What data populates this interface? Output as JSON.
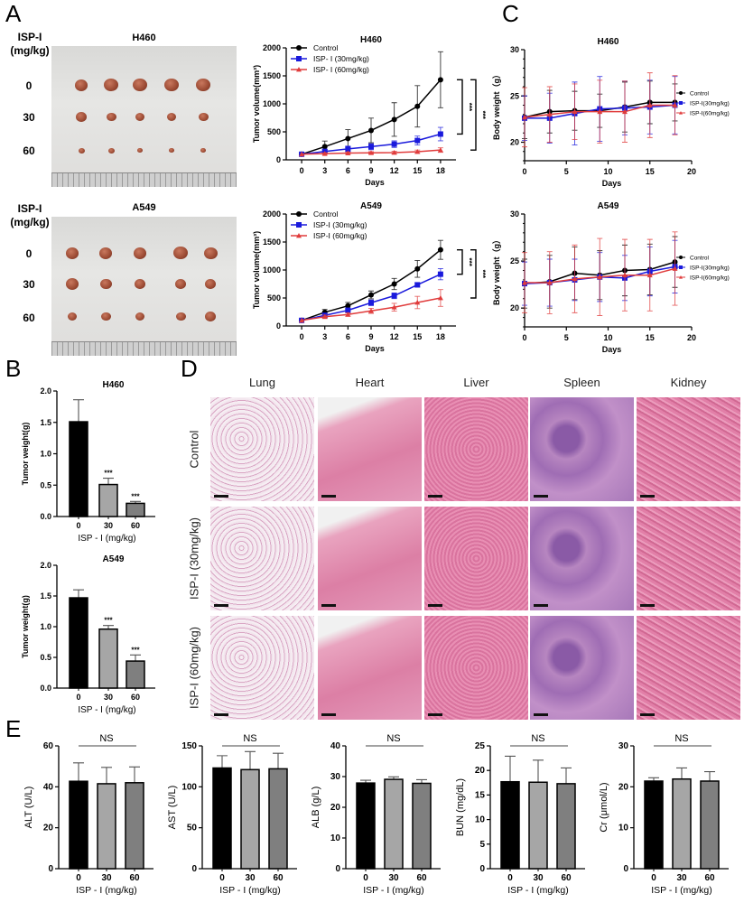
{
  "panels": {
    "A": "A",
    "B": "B",
    "C": "C",
    "D": "D",
    "E": "E"
  },
  "photos": [
    {
      "title": "H460",
      "row_header_1": "ISP-I",
      "row_header_2": "(mg/kg)",
      "rows": [
        "0",
        "30",
        "60"
      ]
    },
    {
      "title": "A549",
      "row_header_1": "ISP-I",
      "row_header_2": "(mg/kg)",
      "rows": [
        "0",
        "30",
        "60"
      ]
    }
  ],
  "histology": {
    "columns": [
      "Lung",
      "Heart",
      "Liver",
      "Spleen",
      "Kidney"
    ],
    "rows": [
      "Control",
      "ISP-I (30mg/kg)",
      "ISP-I (60mg/kg)"
    ]
  },
  "chart_data": [
    {
      "type": "line",
      "panel": "A",
      "title": "H460",
      "xlabel": "Days",
      "ylabel": "Tumor volume(mm³)",
      "x": [
        0,
        3,
        6,
        9,
        12,
        15,
        18
      ],
      "xticks": [
        0,
        3,
        6,
        9,
        12,
        15,
        18
      ],
      "ylim": [
        0,
        2000
      ],
      "yticks": [
        "0",
        "500",
        "1000",
        "1500",
        "2000"
      ],
      "legend": "top-left",
      "series": [
        {
          "name": "Control",
          "color": "#000000",
          "marker": "circle",
          "values": [
            100,
            235,
            380,
            525,
            720,
            955,
            1430
          ],
          "errors": [
            0,
            100,
            160,
            220,
            300,
            370,
            500
          ]
        },
        {
          "name": "ISP- I (30mg/kg)",
          "color": "#1a1adc",
          "marker": "square",
          "values": [
            100,
            150,
            195,
            235,
            280,
            345,
            460
          ],
          "errors": [
            0,
            40,
            50,
            55,
            60,
            80,
            120
          ]
        },
        {
          "name": "ISP- I (60mg/kg)",
          "color": "#e03c3c",
          "marker": "triangle",
          "values": [
            100,
            110,
            120,
            125,
            130,
            145,
            175
          ],
          "errors": [
            0,
            15,
            20,
            20,
            25,
            30,
            40
          ]
        }
      ],
      "significance": [
        {
          "from": 0,
          "to": 1,
          "label": "***"
        },
        {
          "from": 0,
          "to": 2,
          "label": "***"
        }
      ]
    },
    {
      "type": "line",
      "panel": "A",
      "title": "A549",
      "xlabel": "Days",
      "ylabel": "Tumor volume(mm³)",
      "x": [
        0,
        3,
        6,
        9,
        12,
        15,
        18
      ],
      "xticks": [
        0,
        3,
        6,
        9,
        12,
        15,
        18
      ],
      "ylim": [
        0,
        2000
      ],
      "yticks": [
        "0",
        "500",
        "1000",
        "1500",
        "2000"
      ],
      "legend": "top-left",
      "series": [
        {
          "name": "Control",
          "color": "#000000",
          "marker": "circle",
          "values": [
            100,
            245,
            360,
            555,
            750,
            1020,
            1360
          ],
          "errors": [
            0,
            50,
            60,
            70,
            100,
            150,
            170
          ]
        },
        {
          "name": "ISP-I (30mg/kg)",
          "color": "#1a1adc",
          "marker": "square",
          "values": [
            100,
            190,
            280,
            415,
            540,
            735,
            925
          ],
          "errors": [
            0,
            30,
            40,
            50,
            50,
            40,
            100
          ]
        },
        {
          "name": "ISP-I (60mg/kg)",
          "color": "#e03c3c",
          "marker": "triangle",
          "values": [
            100,
            165,
            205,
            270,
            335,
            420,
            500
          ],
          "errors": [
            0,
            30,
            30,
            45,
            70,
            110,
            150
          ]
        }
      ],
      "significance": [
        {
          "from": 0,
          "to": 1,
          "label": "***"
        },
        {
          "from": 0,
          "to": 2,
          "label": "***"
        }
      ]
    },
    {
      "type": "line",
      "panel": "C",
      "title": "H460",
      "xlabel": "Days",
      "ylabel": "Body weight（g）",
      "x": [
        0,
        3,
        6,
        9,
        12,
        15,
        18
      ],
      "xticks": [
        0,
        5,
        10,
        15,
        20
      ],
      "ylim": [
        18,
        30
      ],
      "yticks": [
        "20",
        "25",
        "30"
      ],
      "legend": "right",
      "series": [
        {
          "name": "Control",
          "color": "#000000",
          "marker": "circle",
          "values": [
            22.7,
            23.3,
            23.4,
            23.4,
            23.8,
            24.3,
            24.3
          ],
          "errors": [
            2.3,
            2.3,
            2.1,
            1.8,
            2.7,
            2.3,
            2.0
          ]
        },
        {
          "name": "ISP-Ⅰ(30mg/kg)",
          "color": "#1a1adc",
          "marker": "square",
          "values": [
            22.6,
            22.6,
            23.1,
            23.6,
            23.7,
            23.8,
            24.0
          ],
          "errors": [
            2.4,
            2.7,
            3.4,
            3.5,
            2.9,
            2.9,
            3.1
          ]
        },
        {
          "name": "ISP-Ⅰ(60mg/kg)",
          "color": "#e03c3c",
          "marker": "triangle",
          "values": [
            22.7,
            23.0,
            23.3,
            23.3,
            23.3,
            24.0,
            24.0
          ],
          "errors": [
            3.2,
            3.0,
            3.0,
            3.4,
            3.3,
            3.5,
            3.2
          ]
        }
      ]
    },
    {
      "type": "line",
      "panel": "C",
      "title": "A549",
      "xlabel": "Days",
      "ylabel": "Body weight（g）",
      "x": [
        0,
        3,
        6,
        9,
        12,
        15,
        18
      ],
      "xticks": [
        0,
        5,
        10,
        15,
        20
      ],
      "ylim": [
        18,
        30
      ],
      "yticks": [
        "20",
        "25",
        "30"
      ],
      "legend": "right",
      "series": [
        {
          "name": "Control",
          "color": "#000000",
          "marker": "circle",
          "values": [
            22.6,
            22.8,
            23.7,
            23.5,
            24.0,
            24.1,
            24.9
          ],
          "errors": [
            2.6,
            2.8,
            2.8,
            2.6,
            2.7,
            2.7,
            2.7
          ]
        },
        {
          "name": "ISP-Ⅰ(30mg/kg)",
          "color": "#1a1adc",
          "marker": "square",
          "values": [
            22.6,
            22.7,
            23.0,
            23.3,
            23.2,
            23.9,
            24.4
          ],
          "errors": [
            2.3,
            2.5,
            2.2,
            2.6,
            2.4,
            2.6,
            2.8
          ]
        },
        {
          "name": "ISP-Ⅰ(60mg/kg)",
          "color": "#e03c3c",
          "marker": "triangle",
          "values": [
            22.7,
            22.7,
            23.1,
            23.3,
            23.5,
            23.5,
            24.2
          ],
          "errors": [
            3.2,
            3.3,
            3.6,
            4.1,
            3.8,
            3.8,
            3.9
          ]
        }
      ]
    },
    {
      "type": "bar",
      "panel": "B",
      "title": "H460",
      "xlabel": "ISP - I (mg/kg)",
      "ylabel": "Tumor weight(g)",
      "categories": [
        "0",
        "30",
        "60"
      ],
      "values": [
        1.51,
        0.51,
        0.21
      ],
      "errors": [
        0.35,
        0.1,
        0.03
      ],
      "ylim": [
        0,
        2
      ],
      "yticks": [
        "0.0",
        "0.5",
        "1.0",
        "1.5",
        "2.0"
      ],
      "annotations": [
        "",
        "***",
        "***"
      ],
      "colors": [
        "#000000",
        "#a6a6a6",
        "#7f7f7f"
      ]
    },
    {
      "type": "bar",
      "panel": "B",
      "title": "A549",
      "xlabel": "ISP - I (mg/kg)",
      "ylabel": "Tumor weight(g)",
      "categories": [
        "0",
        "30",
        "60"
      ],
      "values": [
        1.47,
        0.96,
        0.44
      ],
      "errors": [
        0.13,
        0.06,
        0.1
      ],
      "ylim": [
        0,
        2
      ],
      "yticks": [
        "0.0",
        "0.5",
        "1.0",
        "1.5",
        "2.0"
      ],
      "annotations": [
        "",
        "***",
        "***"
      ],
      "colors": [
        "#000000",
        "#a6a6a6",
        "#7f7f7f"
      ]
    },
    {
      "type": "bar",
      "panel": "E",
      "xlabel": "ISP - I (mg/kg)",
      "ylabel": "ALT (U/L)",
      "categories": [
        "0",
        "30",
        "60"
      ],
      "values": [
        42.7,
        41.5,
        42.0
      ],
      "errors": [
        9.0,
        8.0,
        7.7
      ],
      "ylim": [
        0,
        60
      ],
      "yticks": [
        "0",
        "20",
        "40",
        "60"
      ],
      "significance": "NS",
      "colors": [
        "#000000",
        "#a6a6a6",
        "#7f7f7f"
      ]
    },
    {
      "type": "bar",
      "panel": "E",
      "xlabel": "ISP - I (mg/kg)",
      "ylabel": "AST (U/L)",
      "categories": [
        "0",
        "30",
        "60"
      ],
      "values": [
        123,
        121,
        122
      ],
      "errors": [
        15,
        22,
        19
      ],
      "ylim": [
        0,
        150
      ],
      "yticks": [
        "0",
        "50",
        "100",
        "150"
      ],
      "significance": "NS",
      "colors": [
        "#000000",
        "#a6a6a6",
        "#7f7f7f"
      ]
    },
    {
      "type": "bar",
      "panel": "E",
      "xlabel": "ISP - I (mg/kg)",
      "ylabel": "ALB (g/L)",
      "categories": [
        "0",
        "30",
        "60"
      ],
      "values": [
        27.9,
        29.1,
        27.8
      ],
      "errors": [
        0.9,
        0.8,
        1.2
      ],
      "ylim": [
        0,
        40
      ],
      "yticks": [
        "0",
        "10",
        "20",
        "30",
        "40"
      ],
      "significance": "NS",
      "colors": [
        "#000000",
        "#a6a6a6",
        "#7f7f7f"
      ]
    },
    {
      "type": "bar",
      "panel": "E",
      "xlabel": "ISP - I (mg/kg)",
      "ylabel": "BUN (mg/dL)",
      "categories": [
        "0",
        "30",
        "60"
      ],
      "values": [
        17.7,
        17.6,
        17.3
      ],
      "errors": [
        5.2,
        4.5,
        3.2
      ],
      "ylim": [
        0,
        25
      ],
      "yticks": [
        "0",
        "5",
        "10",
        "15",
        "20",
        "25"
      ],
      "significance": "NS",
      "colors": [
        "#000000",
        "#a6a6a6",
        "#7f7f7f"
      ]
    },
    {
      "type": "bar",
      "panel": "E",
      "xlabel": "ISP - I (mg/kg)",
      "ylabel": "Cr (μmol/L)",
      "categories": [
        "0",
        "30",
        "60"
      ],
      "values": [
        21.4,
        21.9,
        21.4
      ],
      "errors": [
        0.8,
        2.7,
        2.3
      ],
      "ylim": [
        0,
        30
      ],
      "yticks": [
        "0",
        "10",
        "20",
        "30"
      ],
      "significance": "NS",
      "colors": [
        "#000000",
        "#a6a6a6",
        "#7f7f7f"
      ]
    }
  ]
}
